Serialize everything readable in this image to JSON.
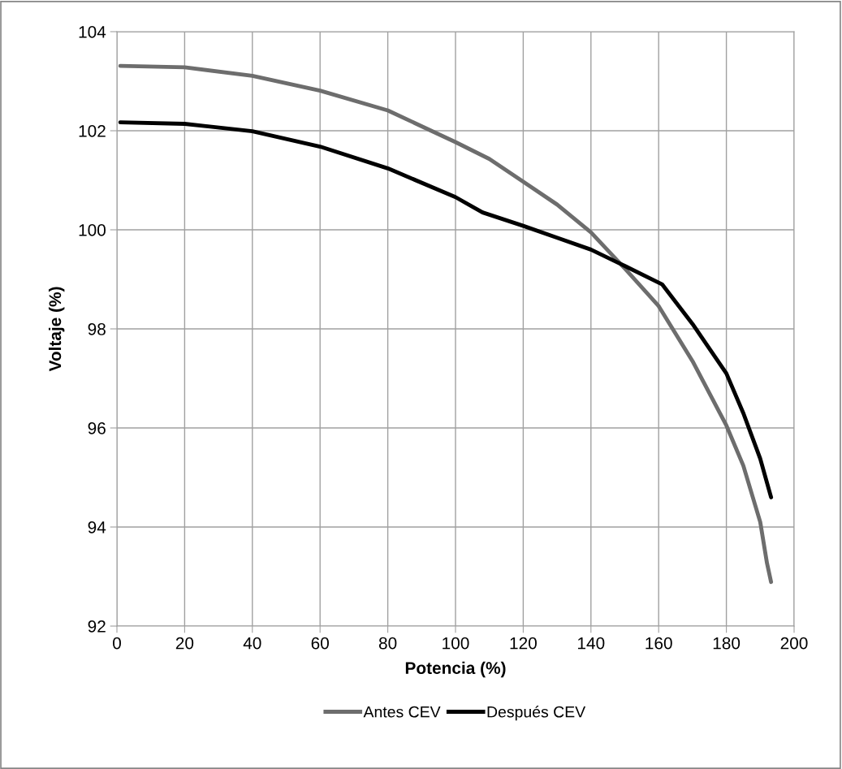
{
  "chart_data": {
    "type": "line",
    "xlabel": "Potencia (%)",
    "ylabel": "Voltaje (%)",
    "xlim": [
      0,
      200
    ],
    "xticks": [
      0,
      20,
      40,
      60,
      80,
      100,
      120,
      140,
      160,
      180,
      200
    ],
    "ylim": [
      92,
      104
    ],
    "yticks": [
      92,
      94,
      96,
      98,
      100,
      102,
      104
    ],
    "grid": true,
    "legend": "bottom",
    "marker": "none",
    "line_style": "solid",
    "series": [
      {
        "name": "Antes CEV",
        "color": "#6d6d6d",
        "x": [
          1,
          20,
          40,
          60,
          80,
          100,
          110,
          120,
          130,
          140,
          150,
          160,
          170,
          180,
          185,
          190,
          192,
          193.2
        ],
        "values": [
          103.31,
          103.28,
          103.11,
          102.81,
          102.41,
          101.77,
          101.43,
          100.97,
          100.51,
          99.95,
          99.22,
          98.46,
          97.35,
          96.05,
          95.24,
          94.1,
          93.27,
          92.89
        ]
      },
      {
        "name": "Después CEV",
        "color": "#000000",
        "x": [
          1,
          20,
          40,
          60,
          80,
          100,
          108,
          120,
          130,
          140,
          150,
          161,
          170,
          180,
          185,
          190,
          193.2
        ],
        "values": [
          102.17,
          102.14,
          101.99,
          101.68,
          101.24,
          100.66,
          100.35,
          100.08,
          99.84,
          99.6,
          99.27,
          98.9,
          98.1,
          97.1,
          96.3,
          95.38,
          94.6
        ]
      }
    ]
  }
}
